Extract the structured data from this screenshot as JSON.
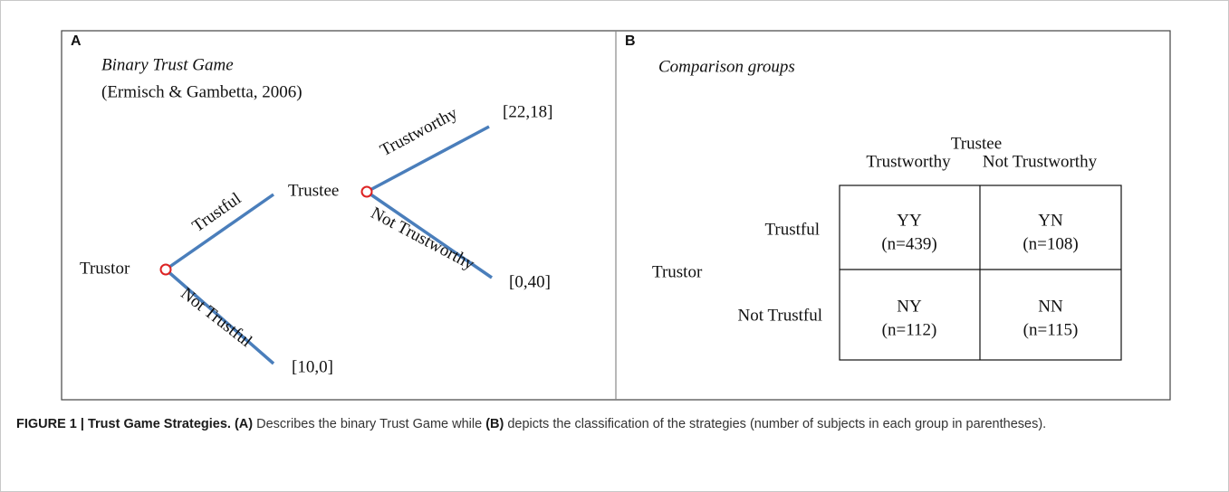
{
  "panel_a": {
    "label": "A",
    "title": "Binary Trust Game",
    "citation": "(Ermisch & Gambetta, 2006)",
    "nodes": [
      "Trustor",
      "Trustee"
    ],
    "branches": [
      "Trustful",
      "Not Trustful",
      "Trustworthy",
      "Not Trustworthy"
    ],
    "payoffs": [
      "[22,18]",
      "[0,40]",
      "[10,0]"
    ]
  },
  "panel_b": {
    "label": "B",
    "title": "Comparison groups",
    "column_group": "Trustee",
    "columns": [
      "Trustworthy",
      "Not Trustworthy"
    ],
    "row_group": "Trustor",
    "rows": [
      "Trustful",
      "Not Trustful"
    ],
    "cells": [
      [
        {
          "code": "YY",
          "count": "(n=439)"
        },
        {
          "code": "YN",
          "count": "(n=108)"
        }
      ],
      [
        {
          "code": "NY",
          "count": "(n=112)"
        },
        {
          "code": "NN",
          "count": "(n=115)"
        }
      ]
    ]
  },
  "caption": {
    "figure": "FIGURE 1 | Trust Game Strategies.",
    "ref_a": "(A)",
    "text_a": "Describes the binary Trust Game while",
    "ref_b": "(B)",
    "text_b": "depicts the classification of the strategies (number of subjects in each group in parentheses)."
  }
}
